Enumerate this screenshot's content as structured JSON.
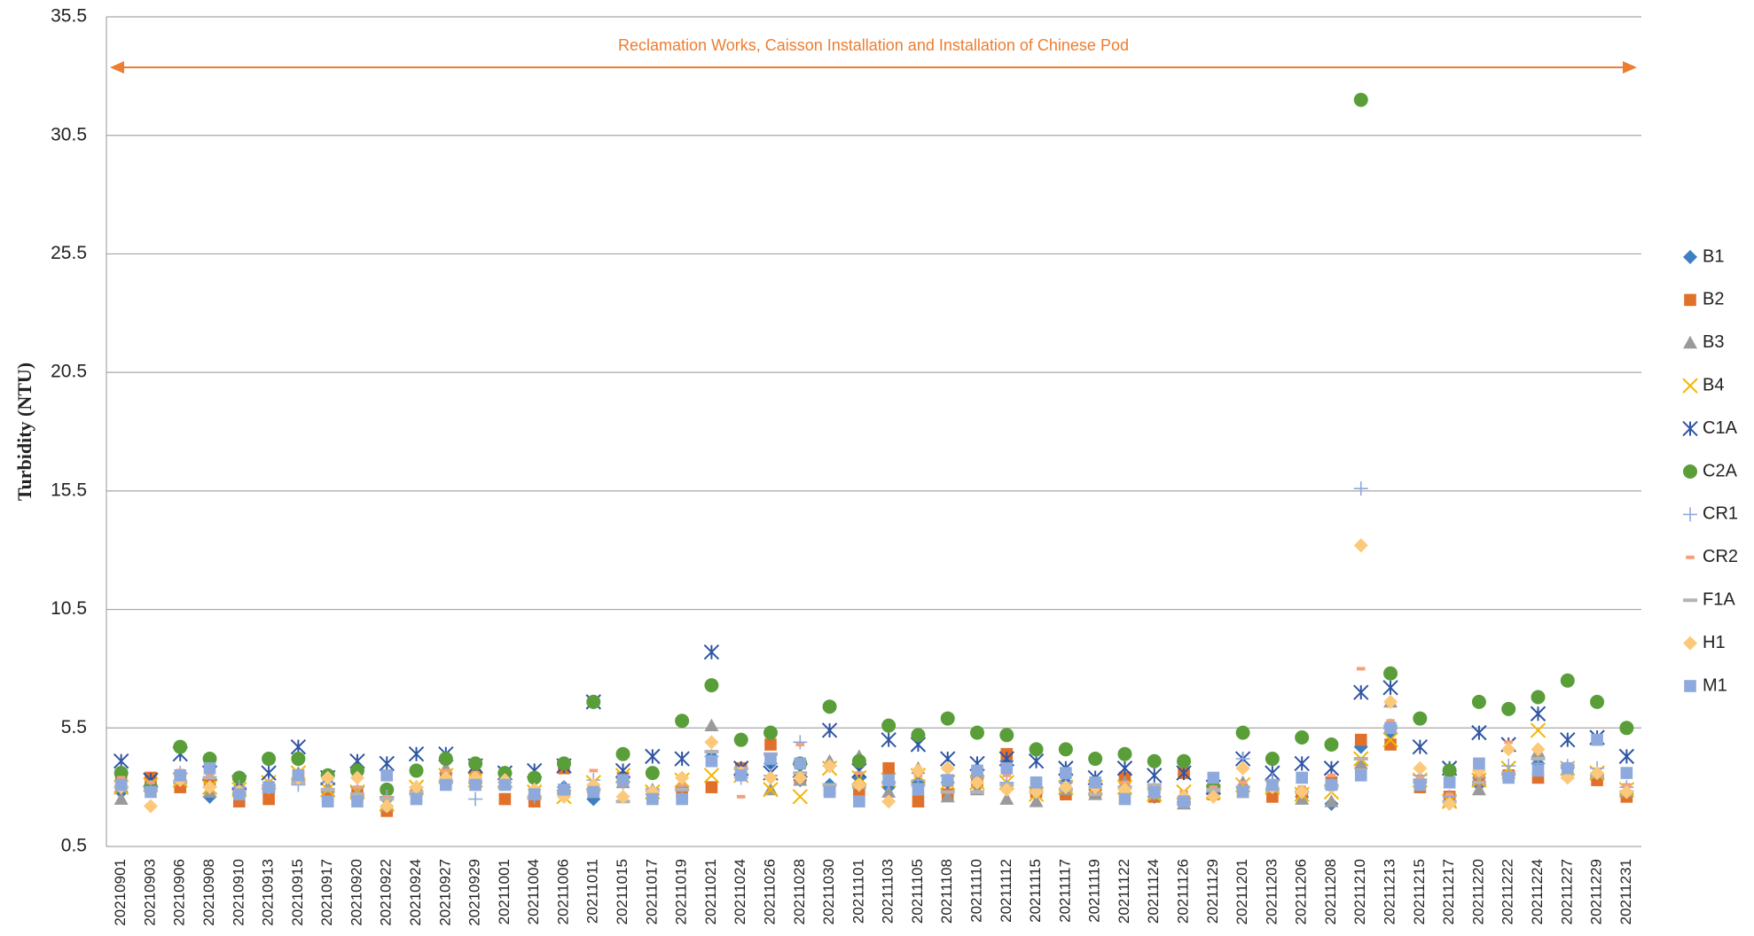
{
  "chart_data": {
    "type": "scatter",
    "y_label": "Turbidity (NTU)",
    "annotation": "Reclamation Works, Caisson Installation and Installation of Chinese Pod",
    "annotation_color": "#ed7d31",
    "ylim": [
      0.5,
      35.5
    ],
    "yticks": [
      0.5,
      5.5,
      10.5,
      15.5,
      20.5,
      25.5,
      30.5,
      35.5
    ],
    "grid": true,
    "legend": "right",
    "categories": [
      "20210901",
      "20210903",
      "20210906",
      "20210908",
      "20210910",
      "20210913",
      "20210915",
      "20210917",
      "20210920",
      "20210922",
      "20210924",
      "20210927",
      "20210929",
      "20211001",
      "20211004",
      "20211006",
      "20211011",
      "20211015",
      "20211017",
      "20211019",
      "20211021",
      "20211024",
      "20211026",
      "20211028",
      "20211030",
      "20211101",
      "20211103",
      "20211105",
      "20211108",
      "20211110",
      "20211112",
      "20211115",
      "20211117",
      "20211119",
      "20211122",
      "20211124",
      "20211126",
      "20211129",
      "20211201",
      "20211203",
      "20211206",
      "20211208",
      "20211210",
      "20211213",
      "20211215",
      "20211217",
      "20211220",
      "20211222",
      "20211224",
      "20211227",
      "20211229",
      "20211231"
    ],
    "series": [
      {
        "name": "B1",
        "color": "#3f7fc1",
        "marker": "diamond",
        "values": [
          2.8,
          3.0,
          3.3,
          2.6,
          2.7,
          2.9,
          3.4,
          2.8,
          2.6,
          2.5,
          2.7,
          3.2,
          3.4,
          3.3,
          2.6,
          3.0,
          2.5,
          3.4,
          2.7,
          2.9,
          4.3,
          3.6,
          4.0,
          3.3,
          3.1,
          3.4,
          3.0,
          3.2,
          3.2,
          3.5,
          4.1,
          3.0,
          3.2,
          2.9,
          3.0,
          2.6,
          2.4,
          2.9,
          3.0,
          3.0,
          2.6,
          2.3,
          4.7,
          5.3,
          3.2,
          2.4,
          3.1,
          3.5,
          4.0,
          3.8,
          3.4,
          2.7
        ]
      },
      {
        "name": "B2",
        "color": "#e0702a",
        "marker": "square",
        "values": [
          3.3,
          3.4,
          3.0,
          3.2,
          2.4,
          2.5,
          3.5,
          2.6,
          2.7,
          2.0,
          2.8,
          3.4,
          3.5,
          2.5,
          2.4,
          3.8,
          2.8,
          3.4,
          2.6,
          2.8,
          3.0,
          3.8,
          4.8,
          3.4,
          2.9,
          2.9,
          3.8,
          2.4,
          2.7,
          3.2,
          4.4,
          2.8,
          2.7,
          2.8,
          3.4,
          2.6,
          3.6,
          2.7,
          2.8,
          2.6,
          2.7,
          3.2,
          5.0,
          4.8,
          3.0,
          2.6,
          3.3,
          3.5,
          3.4,
          3.8,
          3.3,
          2.6
        ]
      },
      {
        "name": "B3",
        "color": "#9a9a9a",
        "marker": "triangle",
        "values": [
          2.5,
          3.2,
          3.4,
          2.8,
          2.9,
          3.0,
          3.6,
          3.0,
          2.8,
          2.2,
          2.9,
          3.8,
          3.5,
          3.2,
          2.7,
          2.9,
          3.0,
          3.2,
          2.9,
          3.1,
          5.6,
          3.7,
          2.9,
          3.3,
          4.1,
          4.3,
          2.8,
          3.8,
          2.6,
          2.9,
          2.5,
          2.4,
          2.9,
          2.7,
          3.2,
          2.7,
          2.3,
          2.8,
          3.2,
          3.0,
          2.5,
          2.4,
          4.0,
          6.6,
          3.4,
          2.4,
          2.9,
          3.6,
          4.5,
          3.6,
          3.6,
          2.8
        ]
      },
      {
        "name": "B4",
        "color": "#f2b600",
        "marker": "x",
        "values": [
          3.0,
          3.1,
          3.3,
          3.0,
          2.9,
          3.2,
          3.6,
          2.9,
          2.8,
          2.3,
          3.0,
          3.5,
          3.3,
          3.3,
          2.8,
          2.6,
          3.2,
          3.5,
          2.8,
          3.3,
          3.5,
          3.5,
          2.9,
          2.6,
          3.8,
          3.4,
          3.3,
          3.5,
          3.2,
          3.2,
          3.2,
          2.7,
          3.0,
          3.0,
          3.0,
          2.7,
          2.8,
          2.8,
          3.1,
          3.0,
          2.7,
          2.8,
          4.2,
          5.0,
          3.3,
          2.4,
          3.3,
          3.8,
          5.4,
          3.8,
          3.6,
          2.9
        ]
      },
      {
        "name": "C1A",
        "color": "#2f55a4",
        "marker": "asterisk",
        "values": [
          4.1,
          3.3,
          4.4,
          3.6,
          3.2,
          3.6,
          4.7,
          3.4,
          4.1,
          4.0,
          4.4,
          4.4,
          3.9,
          3.6,
          3.7,
          3.9,
          6.6,
          3.7,
          4.3,
          4.2,
          8.7,
          3.8,
          3.6,
          3.7,
          5.4,
          3.7,
          5.0,
          4.8,
          4.2,
          4.0,
          4.2,
          4.1,
          3.8,
          3.4,
          3.8,
          3.5,
          3.6,
          3.0,
          4.2,
          3.6,
          4.0,
          3.8,
          7.0,
          7.2,
          4.7,
          3.8,
          5.3,
          4.8,
          6.1,
          5.0,
          5.1,
          4.3
        ]
      },
      {
        "name": "C2A",
        "color": "#5a9e3a",
        "marker": "circle",
        "values": [
          3.6,
          3.0,
          4.7,
          4.2,
          3.4,
          4.2,
          4.2,
          3.5,
          3.7,
          2.9,
          3.7,
          4.2,
          4.0,
          3.6,
          3.4,
          4.0,
          6.6,
          4.4,
          3.6,
          5.8,
          7.3,
          5.0,
          5.3,
          4.0,
          6.4,
          4.1,
          5.6,
          5.2,
          5.9,
          5.3,
          5.2,
          4.6,
          4.6,
          4.2,
          4.4,
          4.1,
          4.1,
          3.0,
          5.3,
          4.2,
          5.1,
          4.8,
          32.0,
          7.8,
          5.9,
          3.7,
          6.6,
          6.3,
          6.8,
          7.5,
          6.6,
          5.5
        ]
      },
      {
        "name": "CR1",
        "color": "#8fa9dc",
        "marker": "plus",
        "values": [
          3.0,
          3.0,
          3.6,
          3.0,
          3.0,
          3.1,
          3.1,
          3.2,
          3.0,
          2.6,
          3.0,
          3.3,
          2.5,
          3.2,
          2.6,
          3.0,
          3.3,
          3.2,
          2.8,
          2.9,
          4.3,
          3.4,
          3.5,
          4.9,
          3.9,
          3.1,
          3.2,
          3.3,
          3.5,
          3.4,
          3.2,
          3.0,
          3.2,
          3.0,
          3.0,
          2.9,
          2.5,
          2.8,
          4.2,
          3.3,
          2.8,
          3.1,
          15.6,
          5.6,
          3.5,
          2.6,
          3.4,
          3.9,
          4.0,
          3.9,
          3.8,
          3.0
        ]
      },
      {
        "name": "CR2",
        "color": "#f4a07a",
        "marker": "dash",
        "values": [
          3.4,
          3.2,
          3.7,
          3.5,
          3.0,
          3.2,
          3.5,
          2.9,
          3.0,
          2.6,
          3.0,
          3.7,
          3.6,
          3.0,
          2.8,
          3.0,
          3.7,
          3.1,
          2.9,
          3.1,
          4.0,
          2.6,
          4.1,
          4.8,
          3.8,
          3.6,
          3.2,
          3.5,
          3.1,
          3.3,
          3.5,
          2.9,
          3.1,
          3.0,
          3.2,
          2.9,
          2.8,
          3.0,
          3.2,
          3.2,
          3.0,
          3.5,
          8.0,
          5.8,
          3.4,
          2.7,
          3.5,
          4.9,
          4.2,
          3.9,
          3.5,
          3.1
        ]
      },
      {
        "name": "F1A",
        "color": "#b4b4b4",
        "marker": "longdash",
        "values": [
          3.0,
          2.9,
          3.2,
          3.4,
          2.8,
          3.0,
          3.2,
          2.9,
          2.7,
          2.5,
          2.8,
          3.2,
          3.2,
          3.0,
          2.6,
          2.8,
          2.9,
          2.4,
          2.9,
          2.9,
          4.5,
          3.8,
          4.4,
          3.6,
          3.1,
          3.0,
          3.2,
          3.1,
          2.8,
          2.8,
          3.1,
          2.8,
          2.9,
          2.7,
          3.0,
          3.1,
          2.3,
          2.9,
          3.0,
          2.9,
          2.8,
          3.0,
          4.2,
          5.5,
          3.3,
          2.4,
          3.2,
          3.6,
          4.2,
          3.9,
          3.5,
          2.8
        ]
      },
      {
        "name": "H1",
        "color": "#fcc87a",
        "marker": "diamond",
        "values": [
          3.0,
          2.2,
          3.3,
          3.0,
          2.8,
          3.0,
          3.4,
          3.4,
          3.4,
          2.2,
          3.0,
          3.4,
          3.4,
          3.3,
          2.9,
          2.6,
          3.1,
          2.6,
          2.8,
          3.4,
          4.9,
          3.6,
          3.4,
          3.4,
          3.9,
          3.1,
          2.4,
          3.7,
          3.8,
          3.2,
          2.9,
          2.8,
          3.0,
          3.0,
          2.9,
          2.8,
          2.6,
          2.6,
          3.8,
          3.0,
          2.8,
          3.0,
          13.2,
          6.6,
          3.8,
          2.3,
          3.7,
          4.6,
          4.6,
          3.4,
          3.6,
          2.8
        ]
      },
      {
        "name": "M1",
        "color": "#8ea9db",
        "marker": "square",
        "values": [
          3.1,
          2.8,
          3.5,
          3.8,
          2.7,
          3.0,
          3.5,
          2.4,
          2.4,
          3.5,
          2.5,
          3.1,
          3.1,
          3.1,
          2.7,
          2.9,
          2.8,
          3.3,
          2.5,
          2.5,
          4.1,
          3.5,
          4.2,
          4.0,
          2.8,
          2.4,
          3.3,
          2.9,
          3.3,
          3.7,
          3.8,
          3.2,
          3.6,
          3.2,
          2.5,
          2.8,
          2.4,
          3.4,
          2.8,
          3.1,
          3.4,
          3.1,
          3.5,
          5.5,
          3.1,
          3.2,
          4.0,
          3.4,
          3.7,
          3.8,
          5.0,
          3.6
        ]
      }
    ]
  }
}
